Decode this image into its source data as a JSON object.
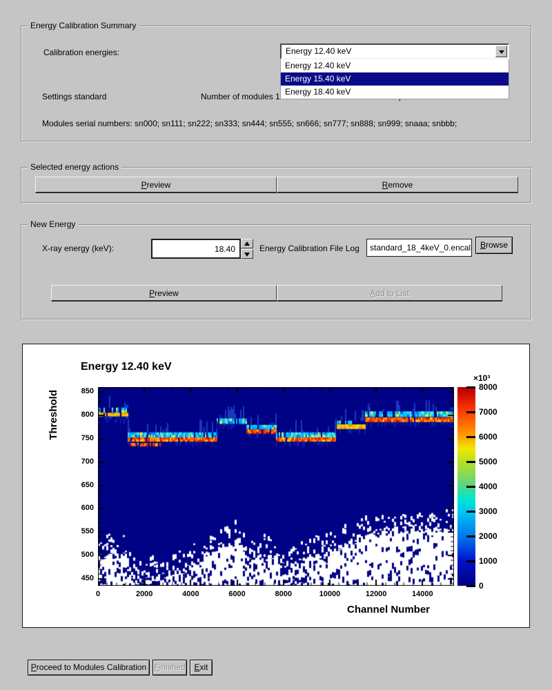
{
  "summary_group": {
    "title": "Energy Calibration Summary",
    "calibration_energies_label": "Calibration energies:",
    "combobox_value": "Energy 12.40 keV",
    "dropdown_options": [
      "Energy 12.40 keV",
      "Energy 15.40 keV",
      "Energy 18.40 keV"
    ],
    "dropdown_selected_index": 1,
    "settings_label": "Settings standard",
    "modules_label": "Number of modules 12",
    "channels_label": "Channels per module 1280",
    "serials_label": "Modules serial numbers: sn000; sn111; sn222; sn333; sn444; sn555; sn666; sn777; sn888; sn999; snaaa; snbbb;"
  },
  "actions_group": {
    "title": "Selected energy actions",
    "preview_label": "Preview",
    "remove_label": "Remove"
  },
  "new_energy_group": {
    "title": "New Energy",
    "xray_label": "X-ray energy (keV):",
    "xray_value": "18.40",
    "file_log_label": "Energy Calibration File Log",
    "file_log_value": "standard_18_4keV_0.encal",
    "browse_label": "Browse",
    "preview_label": "Preview",
    "add_label": "Add to List"
  },
  "footer": {
    "proceed_label": "Proceed to Modules Calibration",
    "finished_label": "Finished",
    "exit_label": "Exit"
  },
  "chart_data": {
    "type": "heatmap",
    "title": "Energy 12.40 keV",
    "xlabel": "Channel Number",
    "ylabel": "Threshold",
    "xlim": [
      0,
      15360
    ],
    "ylim": [
      435,
      861
    ],
    "x_ticks": [
      0,
      2000,
      4000,
      6000,
      8000,
      10000,
      12000,
      14000
    ],
    "x_minor_step": 400,
    "y_ticks": [
      450,
      500,
      550,
      600,
      650,
      700,
      750,
      800,
      850
    ],
    "y_minor_step": 10,
    "grid": false,
    "background_value_color": "#000285",
    "colorbar": {
      "min": 0,
      "max": 8000,
      "multiplier": "×10³",
      "ticks": [
        0,
        1000,
        2000,
        3000,
        4000,
        5000,
        6000,
        7000,
        8000
      ],
      "gradient": [
        {
          "v": 0.0,
          "c": "#000082"
        },
        {
          "v": 0.125,
          "c": "#0012c8"
        },
        {
          "v": 0.25,
          "c": "#0078f0"
        },
        {
          "v": 0.375,
          "c": "#00c8f0"
        },
        {
          "v": 0.44,
          "c": "#00e8d0"
        },
        {
          "v": 0.5,
          "c": "#55d585"
        },
        {
          "v": 0.625,
          "c": "#b8e020"
        },
        {
          "v": 0.69,
          "c": "#f0e800"
        },
        {
          "v": 0.75,
          "c": "#ffa000"
        },
        {
          "v": 0.875,
          "c": "#ff4000"
        },
        {
          "v": 0.94,
          "c": "#e01800"
        },
        {
          "v": 1.0,
          "c": "#b00000"
        }
      ]
    },
    "palettes": {
      "cool": [
        "#0066e8",
        "#0099ff",
        "#00bbff",
        "#00ddff",
        "#00bbff",
        "#33e0ff",
        "#0099ff",
        "#00ddff",
        "#88eebb",
        "#eeee22"
      ],
      "hot": [
        "#cc1500",
        "#ee3300",
        "#ff4400",
        "#ff6600",
        "#ee2200",
        "#ff8800",
        "#ffaa00",
        "#dd1100",
        "#ff5500",
        "#eedd00"
      ],
      "warm": [
        "#ffee00",
        "#ffcc00",
        "#ffaa00",
        "#eedd11",
        "#ff8800",
        "#ccdd22"
      ],
      "faint": [
        "#0022b0",
        "#1133c8",
        "#2244d8",
        "#0a1ea0"
      ]
    },
    "modules": [
      {
        "ch": [
          0,
          1280
        ],
        "rows": [
          {
            "t": [
              806,
              817
            ],
            "palette": "cool",
            "density": 0.5
          },
          {
            "t": [
              798,
              806
            ],
            "palette": "warm",
            "density": 0.8
          },
          {
            "t": [
              792,
              798
            ],
            "palette": "faint",
            "density": 0.45
          }
        ]
      },
      {
        "ch": [
          1280,
          2560
        ],
        "rows": [
          {
            "t": [
              753,
              764
            ],
            "palette": "cool",
            "density": 0.9
          },
          {
            "t": [
              744,
              753
            ],
            "palette": "hot",
            "density": 0.95
          }
        ]
      },
      {
        "ch": [
          2560,
          3840
        ],
        "rows": [
          {
            "t": [
              753,
              764
            ],
            "palette": "cool",
            "density": 0.9
          },
          {
            "t": [
              744,
              753
            ],
            "palette": "hot",
            "density": 0.95
          }
        ]
      },
      {
        "ch": [
          3840,
          5120
        ],
        "rows": [
          {
            "t": [
              753,
              764
            ],
            "palette": "cool",
            "density": 0.9
          },
          {
            "t": [
              744,
              753
            ],
            "palette": "hot",
            "density": 0.95
          }
        ]
      },
      {
        "ch": [
          5120,
          6400
        ],
        "rows": [
          {
            "t": [
              782,
              794
            ],
            "palette": "cool",
            "density": 0.85
          }
        ]
      },
      {
        "ch": [
          6400,
          7680
        ],
        "rows": [
          {
            "t": [
              770,
              780
            ],
            "palette": "cool",
            "density": 0.9
          },
          {
            "t": [
              761,
              770
            ],
            "palette": "hot",
            "density": 0.9
          }
        ]
      },
      {
        "ch": [
          7680,
          8960
        ],
        "rows": [
          {
            "t": [
              753,
              764
            ],
            "palette": "cool",
            "density": 0.9
          },
          {
            "t": [
              744,
              753
            ],
            "palette": "hot",
            "density": 0.95
          }
        ]
      },
      {
        "ch": [
          8960,
          10240
        ],
        "rows": [
          {
            "t": [
              753,
              764
            ],
            "palette": "cool",
            "density": 0.9
          },
          {
            "t": [
              744,
              753
            ],
            "palette": "hot",
            "density": 0.95
          }
        ]
      },
      {
        "ch": [
          10240,
          11520
        ],
        "rows": [
          {
            "t": [
              781,
              789
            ],
            "palette": "cool",
            "density": 0.35
          },
          {
            "t": [
              771,
              781
            ],
            "palette": "warm",
            "density": 0.95
          }
        ]
      },
      {
        "ch": [
          11520,
          12800
        ],
        "rows": [
          {
            "t": [
              797,
              809
            ],
            "palette": "cool",
            "density": 0.9
          },
          {
            "t": [
              786,
              796
            ],
            "palette": "hot",
            "density": 0.95
          }
        ]
      },
      {
        "ch": [
          12800,
          14080
        ],
        "rows": [
          {
            "t": [
              797,
              809
            ],
            "palette": "cool",
            "density": 0.9
          },
          {
            "t": [
              786,
              796
            ],
            "palette": "hot",
            "density": 0.95
          }
        ]
      },
      {
        "ch": [
          14080,
          15360
        ],
        "rows": [
          {
            "t": [
              797,
              809
            ],
            "palette": "cool",
            "density": 0.9
          },
          {
            "t": [
              786,
              796
            ],
            "palette": "hot",
            "density": 0.95
          }
        ]
      }
    ],
    "extra_bands": [
      {
        "ch": [
          1400,
          2700
        ],
        "t": [
          734,
          741
        ],
        "palette": "hot",
        "density": 0.85
      }
    ],
    "noise_boundary": [
      [
        0,
        500
      ],
      [
        1250,
        500
      ],
      [
        1380,
        450
      ],
      [
        2600,
        452
      ],
      [
        3600,
        468
      ],
      [
        4600,
        498
      ],
      [
        5300,
        522
      ],
      [
        6000,
        528
      ],
      [
        6600,
        492
      ],
      [
        7300,
        500
      ],
      [
        8200,
        478
      ],
      [
        9000,
        495
      ],
      [
        9800,
        498
      ],
      [
        10600,
        524
      ],
      [
        11500,
        542
      ],
      [
        12500,
        552
      ],
      [
        13500,
        556
      ],
      [
        14300,
        548
      ],
      [
        15360,
        558
      ]
    ]
  }
}
